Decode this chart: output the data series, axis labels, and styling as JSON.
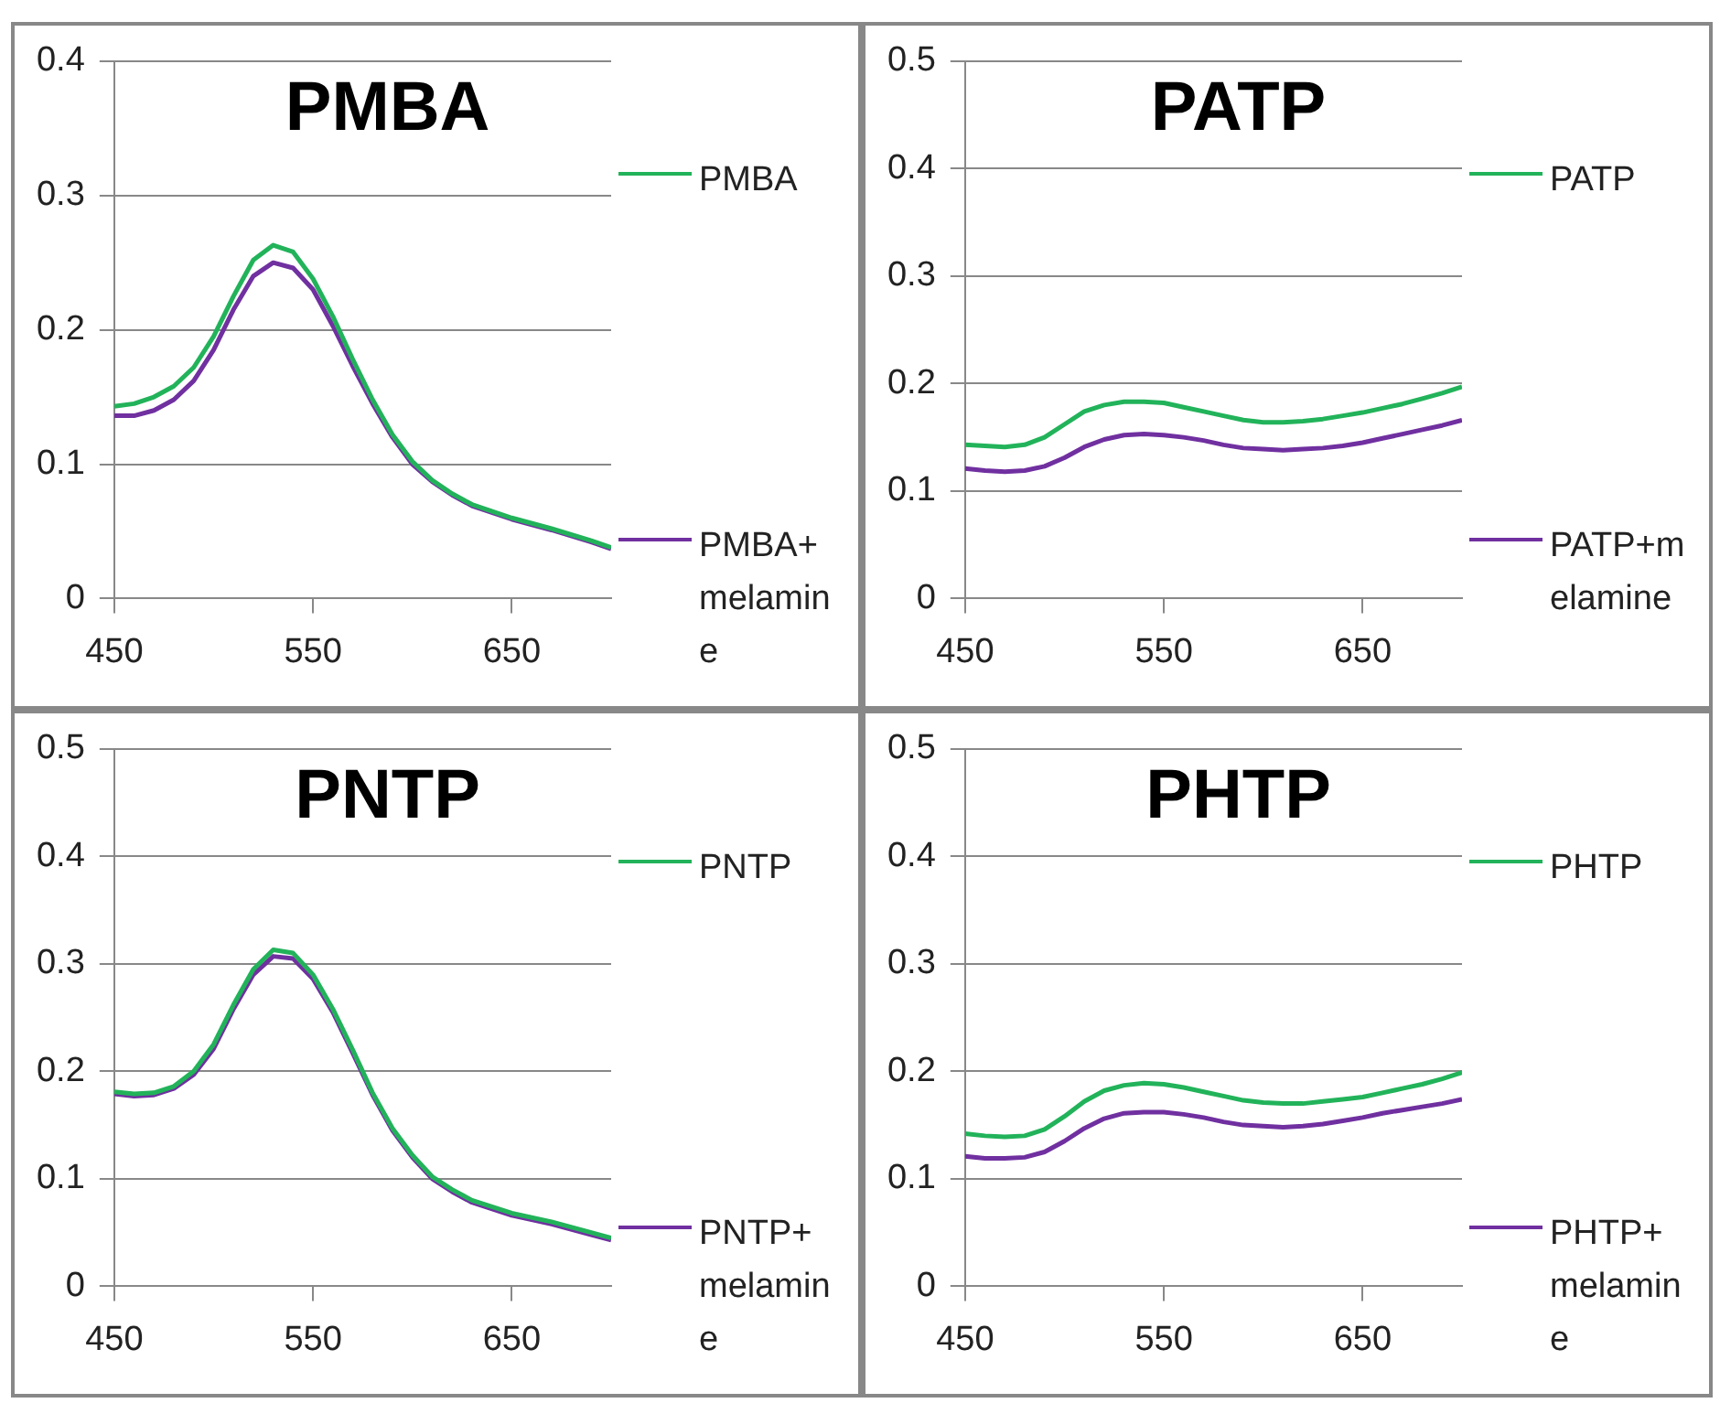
{
  "chart_data": [
    {
      "type": "line",
      "title": "PMBA",
      "x": [
        450,
        460,
        470,
        480,
        490,
        500,
        510,
        520,
        530,
        540,
        550,
        560,
        570,
        580,
        590,
        600,
        610,
        620,
        630,
        650,
        670,
        690,
        700
      ],
      "xlim": [
        450,
        700
      ],
      "xticks": [
        450,
        550,
        650
      ],
      "ylim": [
        0,
        0.4
      ],
      "yticks": [
        0,
        0.1,
        0.2,
        0.3,
        0.4
      ],
      "grid": "y",
      "legend": "right",
      "marker": "none",
      "line_style": "solid",
      "series": [
        {
          "name": "PMBA",
          "color": "#22b35a",
          "values": [
            0.143,
            0.145,
            0.15,
            0.158,
            0.172,
            0.195,
            0.225,
            0.252,
            0.263,
            0.258,
            0.238,
            0.21,
            0.178,
            0.148,
            0.122,
            0.102,
            0.088,
            0.078,
            0.07,
            0.06,
            0.052,
            0.043,
            0.038
          ]
        },
        {
          "name": "PMBA+melamine",
          "color": "#7030a0",
          "values": [
            0.136,
            0.136,
            0.14,
            0.148,
            0.162,
            0.185,
            0.215,
            0.24,
            0.25,
            0.246,
            0.23,
            0.203,
            0.173,
            0.145,
            0.12,
            0.1,
            0.087,
            0.077,
            0.069,
            0.059,
            0.051,
            0.042,
            0.037
          ]
        }
      ]
    },
    {
      "type": "line",
      "title": "PATP",
      "x": [
        450,
        460,
        470,
        480,
        490,
        500,
        510,
        520,
        530,
        540,
        550,
        560,
        570,
        580,
        590,
        600,
        610,
        620,
        630,
        640,
        650,
        660,
        670,
        680,
        690,
        700
      ],
      "xlim": [
        450,
        700
      ],
      "xticks": [
        450,
        550,
        650
      ],
      "ylim": [
        0,
        0.5
      ],
      "yticks": [
        0,
        0.1,
        0.2,
        0.3,
        0.4,
        0.5
      ],
      "grid": "y",
      "legend": "right",
      "marker": "none",
      "line_style": "solid",
      "series": [
        {
          "name": "PATP",
          "color": "#22b35a",
          "values": [
            0.143,
            0.142,
            0.141,
            0.143,
            0.15,
            0.162,
            0.174,
            0.18,
            0.183,
            0.183,
            0.182,
            0.178,
            0.174,
            0.17,
            0.166,
            0.164,
            0.164,
            0.165,
            0.167,
            0.17,
            0.173,
            0.177,
            0.181,
            0.186,
            0.191,
            0.197
          ]
        },
        {
          "name": "PATP+melamine",
          "color": "#7030a0",
          "values": [
            0.121,
            0.119,
            0.118,
            0.119,
            0.123,
            0.131,
            0.141,
            0.148,
            0.152,
            0.153,
            0.152,
            0.15,
            0.147,
            0.143,
            0.14,
            0.139,
            0.138,
            0.139,
            0.14,
            0.142,
            0.145,
            0.149,
            0.153,
            0.157,
            0.161,
            0.166
          ]
        }
      ]
    },
    {
      "type": "line",
      "title": "PNTP",
      "x": [
        450,
        460,
        470,
        480,
        490,
        500,
        510,
        520,
        530,
        540,
        550,
        560,
        570,
        580,
        590,
        600,
        610,
        620,
        630,
        650,
        670,
        690,
        700
      ],
      "xlim": [
        450,
        700
      ],
      "xticks": [
        450,
        550,
        650
      ],
      "ylim": [
        0,
        0.5
      ],
      "yticks": [
        0,
        0.1,
        0.2,
        0.3,
        0.4,
        0.5
      ],
      "grid": "y",
      "legend": "right",
      "marker": "none",
      "line_style": "solid",
      "series": [
        {
          "name": "PNTP",
          "color": "#22b35a",
          "values": [
            0.181,
            0.179,
            0.18,
            0.186,
            0.2,
            0.225,
            0.262,
            0.295,
            0.313,
            0.31,
            0.29,
            0.258,
            0.22,
            0.18,
            0.147,
            0.122,
            0.102,
            0.09,
            0.08,
            0.068,
            0.06,
            0.05,
            0.045
          ]
        },
        {
          "name": "PNTP+melamine",
          "color": "#7030a0",
          "values": [
            0.179,
            0.177,
            0.178,
            0.184,
            0.197,
            0.221,
            0.258,
            0.29,
            0.307,
            0.305,
            0.286,
            0.255,
            0.217,
            0.178,
            0.145,
            0.12,
            0.1,
            0.088,
            0.078,
            0.066,
            0.058,
            0.048,
            0.043
          ]
        }
      ]
    },
    {
      "type": "line",
      "title": "PHTP",
      "x": [
        450,
        460,
        470,
        480,
        490,
        500,
        510,
        520,
        530,
        540,
        550,
        560,
        570,
        580,
        590,
        600,
        610,
        620,
        630,
        640,
        650,
        660,
        670,
        680,
        690,
        700
      ],
      "xlim": [
        450,
        700
      ],
      "xticks": [
        450,
        550,
        650
      ],
      "ylim": [
        0,
        0.5
      ],
      "yticks": [
        0,
        0.1,
        0.2,
        0.3,
        0.4,
        0.5
      ],
      "grid": "y",
      "legend": "right",
      "marker": "none",
      "line_style": "solid",
      "series": [
        {
          "name": "PHTP",
          "color": "#22b35a",
          "values": [
            0.142,
            0.14,
            0.139,
            0.14,
            0.146,
            0.158,
            0.172,
            0.182,
            0.187,
            0.189,
            0.188,
            0.185,
            0.181,
            0.177,
            0.173,
            0.171,
            0.17,
            0.17,
            0.172,
            0.174,
            0.176,
            0.18,
            0.184,
            0.188,
            0.193,
            0.199
          ]
        },
        {
          "name": "PHTP+melamine",
          "color": "#7030a0",
          "values": [
            0.121,
            0.119,
            0.119,
            0.12,
            0.125,
            0.135,
            0.147,
            0.156,
            0.161,
            0.162,
            0.162,
            0.16,
            0.157,
            0.153,
            0.15,
            0.149,
            0.148,
            0.149,
            0.151,
            0.154,
            0.157,
            0.161,
            0.164,
            0.167,
            0.17,
            0.174
          ]
        }
      ]
    }
  ]
}
